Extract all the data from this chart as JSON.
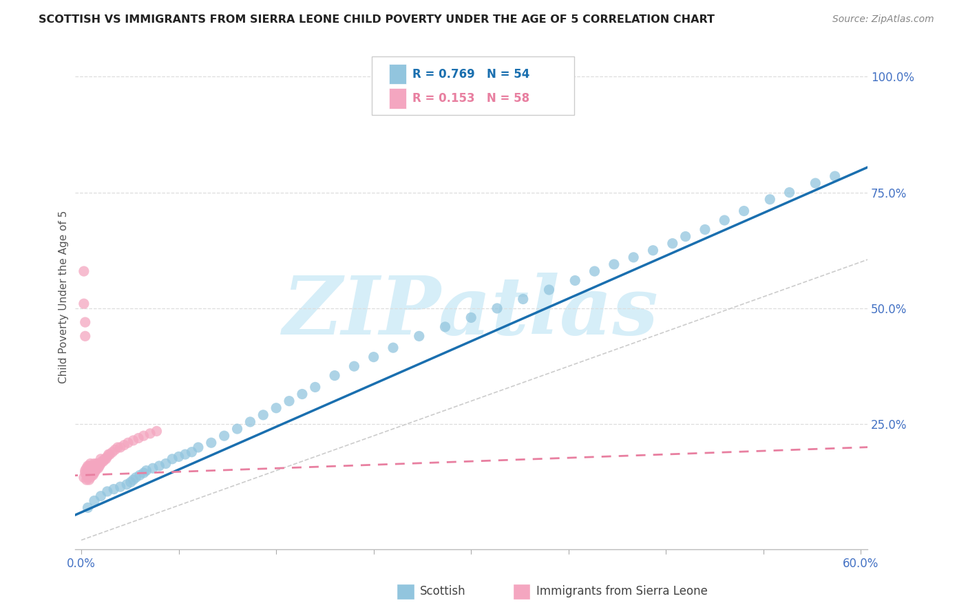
{
  "title": "SCOTTISH VS IMMIGRANTS FROM SIERRA LEONE CHILD POVERTY UNDER THE AGE OF 5 CORRELATION CHART",
  "source": "Source: ZipAtlas.com",
  "ylabel": "Child Poverty Under the Age of 5",
  "legend_blue": "R = 0.769   N = 54",
  "legend_pink": "R = 0.153   N = 58",
  "legend_blue_label": "Scottish",
  "legend_pink_label": "Immigrants from Sierra Leone",
  "scottish_color": "#92c5de",
  "sierra_leone_color": "#f4a6c0",
  "scottish_line_color": "#1a6faf",
  "sierra_leone_line_color": "#e87fa0",
  "refline_color": "#cccccc",
  "watermark": "ZIPatlas",
  "watermark_color": "#d6eef8",
  "background_color": "#ffffff",
  "grid_color": "#dddddd",
  "axis_label_color": "#4472c4",
  "title_color": "#222222",
  "ylabel_color": "#555555",
  "source_color": "#888888",
  "xlim": [
    0.0,
    0.6
  ],
  "ylim": [
    0.0,
    1.05
  ],
  "xticks": [
    0.0,
    0.075,
    0.15,
    0.225,
    0.3,
    0.375,
    0.45,
    0.525,
    0.6
  ],
  "yticks_right": [
    0.25,
    0.5,
    0.75,
    1.0
  ],
  "ytick_labels_right": [
    "25.0%",
    "50.0%",
    "75.0%",
    "100.0%"
  ],
  "scottish_x": [
    0.005,
    0.01,
    0.015,
    0.02,
    0.025,
    0.03,
    0.035,
    0.038,
    0.04,
    0.042,
    0.045,
    0.048,
    0.05,
    0.055,
    0.06,
    0.065,
    0.07,
    0.075,
    0.08,
    0.085,
    0.09,
    0.1,
    0.11,
    0.12,
    0.13,
    0.14,
    0.15,
    0.16,
    0.17,
    0.18,
    0.195,
    0.21,
    0.225,
    0.24,
    0.26,
    0.28,
    0.3,
    0.32,
    0.34,
    0.36,
    0.38,
    0.395,
    0.41,
    0.425,
    0.44,
    0.455,
    0.465,
    0.48,
    0.495,
    0.51,
    0.53,
    0.545,
    0.565,
    0.58
  ],
  "scottish_y": [
    0.07,
    0.085,
    0.095,
    0.105,
    0.11,
    0.115,
    0.12,
    0.125,
    0.13,
    0.135,
    0.14,
    0.145,
    0.15,
    0.155,
    0.16,
    0.165,
    0.175,
    0.18,
    0.185,
    0.19,
    0.2,
    0.21,
    0.225,
    0.24,
    0.255,
    0.27,
    0.285,
    0.3,
    0.315,
    0.33,
    0.355,
    0.375,
    0.395,
    0.415,
    0.44,
    0.46,
    0.48,
    0.5,
    0.52,
    0.54,
    0.56,
    0.58,
    0.595,
    0.61,
    0.625,
    0.64,
    0.655,
    0.67,
    0.69,
    0.71,
    0.735,
    0.75,
    0.77,
    0.785
  ],
  "sierra_leone_x": [
    0.002,
    0.003,
    0.003,
    0.004,
    0.004,
    0.004,
    0.005,
    0.005,
    0.005,
    0.005,
    0.006,
    0.006,
    0.006,
    0.006,
    0.007,
    0.007,
    0.007,
    0.007,
    0.008,
    0.008,
    0.008,
    0.009,
    0.009,
    0.009,
    0.01,
    0.01,
    0.01,
    0.011,
    0.011,
    0.012,
    0.012,
    0.013,
    0.013,
    0.014,
    0.015,
    0.015,
    0.016,
    0.017,
    0.018,
    0.019,
    0.02,
    0.021,
    0.022,
    0.024,
    0.026,
    0.028,
    0.03,
    0.033,
    0.036,
    0.04,
    0.044,
    0.048,
    0.053,
    0.058,
    0.002,
    0.002,
    0.003,
    0.003
  ],
  "sierra_leone_y": [
    0.135,
    0.145,
    0.15,
    0.13,
    0.14,
    0.155,
    0.135,
    0.145,
    0.15,
    0.16,
    0.13,
    0.14,
    0.15,
    0.16,
    0.135,
    0.145,
    0.155,
    0.165,
    0.14,
    0.15,
    0.16,
    0.14,
    0.15,
    0.16,
    0.145,
    0.155,
    0.165,
    0.15,
    0.16,
    0.155,
    0.165,
    0.155,
    0.165,
    0.16,
    0.165,
    0.175,
    0.17,
    0.17,
    0.175,
    0.175,
    0.18,
    0.185,
    0.185,
    0.19,
    0.195,
    0.2,
    0.2,
    0.205,
    0.21,
    0.215,
    0.22,
    0.225,
    0.23,
    0.235,
    0.58,
    0.51,
    0.47,
    0.44
  ]
}
